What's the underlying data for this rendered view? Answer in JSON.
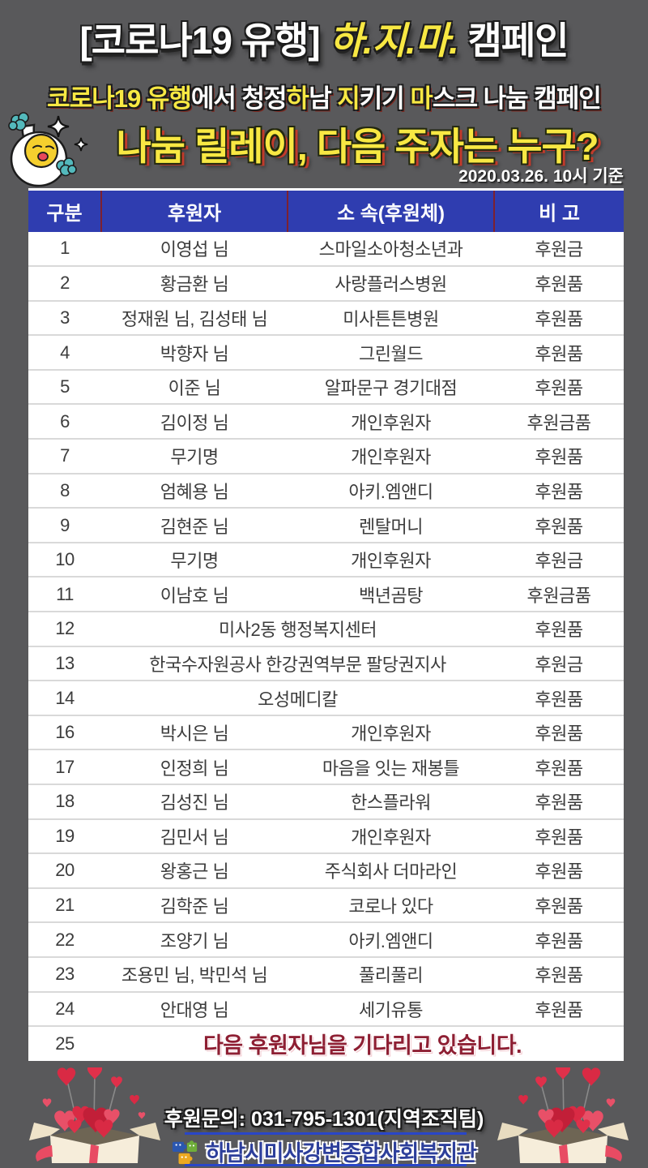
{
  "header": {
    "title": {
      "part1": "[코로나19 유행] ",
      "part2": "하.지.마.",
      "part3": " 캠페인"
    },
    "subtitle_segments": [
      {
        "text": "코로나19 유행",
        "color": "y"
      },
      {
        "text": "에서 청정",
        "color": "w"
      },
      {
        "text": "하",
        "color": "y"
      },
      {
        "text": "남 ",
        "color": "w"
      },
      {
        "text": "지",
        "color": "y"
      },
      {
        "text": "키기 ",
        "color": "w"
      },
      {
        "text": "마",
        "color": "y"
      },
      {
        "text": "스크 나눔 캠페인",
        "color": "w"
      }
    ],
    "tagline": "나눔 릴레이, 다음 주자는 누구?",
    "date_note": "2020.03.26. 10시 기준"
  },
  "table": {
    "columns": [
      "구분",
      "후원자",
      "소 속(후원체)",
      "비 고"
    ],
    "rows": [
      {
        "no": "1",
        "donor": "이영섭 님",
        "org": "스마일소아청소년과",
        "note": "후원금"
      },
      {
        "no": "2",
        "donor": "황금환 님",
        "org": "사랑플러스병원",
        "note": "후원품"
      },
      {
        "no": "3",
        "donor": "정재원 님, 김성태 님",
        "org": "미사튼튼병원",
        "note": "후원품"
      },
      {
        "no": "4",
        "donor": "박향자 님",
        "org": "그린월드",
        "note": "후원품"
      },
      {
        "no": "5",
        "donor": "이준 님",
        "org": "알파문구 경기대점",
        "note": "후원품"
      },
      {
        "no": "6",
        "donor": "김이정 님",
        "org": "개인후원자",
        "note": "후원금품"
      },
      {
        "no": "7",
        "donor": "무기명",
        "org": "개인후원자",
        "note": "후원품"
      },
      {
        "no": "8",
        "donor": "엄혜용 님",
        "org": "아키.엠앤디",
        "note": "후원품"
      },
      {
        "no": "9",
        "donor": "김현준 님",
        "org": "렌탈머니",
        "note": "후원품"
      },
      {
        "no": "10",
        "donor": "무기명",
        "org": "개인후원자",
        "note": "후원금"
      },
      {
        "no": "11",
        "donor": "이남호 님",
        "org": "백년곰탕",
        "note": "후원금품"
      },
      {
        "no": "12",
        "merged": "미사2동 행정복지센터",
        "note": "후원품"
      },
      {
        "no": "13",
        "merged": "한국수자원공사 한강권역부문 팔당권지사",
        "note": "후원금"
      },
      {
        "no": "14",
        "merged": "오성메디칼",
        "note": "후원품"
      },
      {
        "no": "16",
        "donor": "박시은 님",
        "org": "개인후원자",
        "note": "후원품"
      },
      {
        "no": "17",
        "donor": "인정희 님",
        "org": "마음을 잇는 재봉틀",
        "note": "후원품"
      },
      {
        "no": "18",
        "donor": "김성진 님",
        "org": "한스플라워",
        "note": "후원품"
      },
      {
        "no": "19",
        "donor": "김민서 님",
        "org": "개인후원자",
        "note": "후원품"
      },
      {
        "no": "20",
        "donor": "왕홍근 님",
        "org": "주식회사 더마라인",
        "note": "후원품"
      },
      {
        "no": "21",
        "donor": "김학준 님",
        "org": "코로나 있다",
        "note": "후원품"
      },
      {
        "no": "22",
        "donor": "조양기 님",
        "org": "아키.엠앤디",
        "note": "후원품"
      },
      {
        "no": "23",
        "donor": "조용민 님, 박민석 님",
        "org": "풀리풀리",
        "note": "후원품"
      },
      {
        "no": "24",
        "donor": "안대영 님",
        "org": "세기유통",
        "note": "후원품"
      },
      {
        "no": "25",
        "message": "다음 후원자님을 기다리고 있습니다."
      }
    ]
  },
  "footer": {
    "contact": "후원문의: 031-795-1301(지역조직팀)",
    "org": "하남시미사강변종합사회복지관"
  },
  "icons": {
    "mascot": "cheering-egg-mascot-icon",
    "sparkles": "sparkle-icon",
    "gift": "gift-box-hearts-icon",
    "logo": "puzzle-logo-icon"
  },
  "colors": {
    "background": "#59595b",
    "accent_yellow": "#f8e843",
    "header_blue": "#2f3db0",
    "header_divider_maroon": "#7d2130",
    "message_maroon": "#8e1f33",
    "org_text_blue": "#2d3f9b",
    "footer_line_blue": "#2946c8",
    "heart_red": "#d92a44",
    "pompom_teal": "#53b9bc"
  }
}
